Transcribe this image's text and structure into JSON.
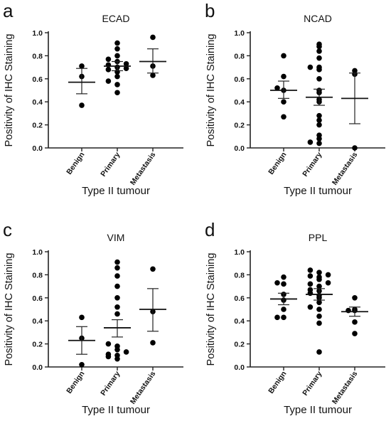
{
  "chart_data": [
    {
      "type": "scatter",
      "panel": "a",
      "title": "ECAD",
      "xlabel": "Type II tumour",
      "ylabel": "Positivity of IHC Staining",
      "ylim": [
        0,
        1.0
      ],
      "yticks": [
        "0.0",
        "0.2",
        "0.4",
        "0.6",
        "0.8",
        "1.0"
      ],
      "categories": [
        "Benign",
        "Primary",
        "Metastasis"
      ],
      "series": [
        {
          "values": [
            0.37,
            0.62,
            0.71
          ]
        },
        {
          "values": [
            0.48,
            0.55,
            0.58,
            0.62,
            0.66,
            0.68,
            0.69,
            0.7,
            0.72,
            0.73,
            0.75,
            0.77,
            0.8,
            0.86,
            0.91
          ]
        },
        {
          "values": [
            0.63,
            0.71,
            0.96
          ]
        }
      ],
      "means": [
        0.57,
        0.71,
        0.75
      ],
      "errors": [
        {
          "low": 0.47,
          "high": 0.69
        },
        {
          "low": 0.67,
          "high": 0.75
        },
        {
          "low": 0.65,
          "high": 0.86
        }
      ]
    },
    {
      "type": "scatter",
      "panel": "b",
      "title": "NCAD",
      "xlabel": "Type II tumour",
      "ylabel": "Positivity of IHC Staining",
      "ylim": [
        0,
        1.0
      ],
      "yticks": [
        "0.0",
        "0.2",
        "0.4",
        "0.6",
        "0.8",
        "1.0"
      ],
      "categories": [
        "Benign",
        "Primary",
        "Metastasis"
      ],
      "series": [
        {
          "values": [
            0.27,
            0.4,
            0.5,
            0.52,
            0.62,
            0.8
          ]
        },
        {
          "values": [
            0.04,
            0.05,
            0.08,
            0.11,
            0.2,
            0.24,
            0.28,
            0.4,
            0.42,
            0.48,
            0.5,
            0.6,
            0.68,
            0.7,
            0.7,
            0.78,
            0.84,
            0.88,
            0.9
          ]
        },
        {
          "values": [
            0.0,
            0.64,
            0.67
          ]
        }
      ],
      "means": [
        0.5,
        0.44,
        0.43
      ],
      "errors": [
        {
          "low": 0.43,
          "high": 0.58
        },
        {
          "low": 0.37,
          "high": 0.51
        },
        {
          "low": 0.21,
          "high": 0.65
        }
      ]
    },
    {
      "type": "scatter",
      "panel": "c",
      "title": "VIM",
      "xlabel": "Type II tumour",
      "ylabel": "Positivity of IHC Staining",
      "ylim": [
        0,
        1.0
      ],
      "yticks": [
        "0.0",
        "0.2",
        "0.4",
        "0.6",
        "0.8",
        "1.0"
      ],
      "categories": [
        "Benign",
        "Primary",
        "Metastasis"
      ],
      "series": [
        {
          "values": [
            0.02,
            0.25,
            0.43
          ]
        },
        {
          "values": [
            0.07,
            0.09,
            0.1,
            0.11,
            0.13,
            0.15,
            0.18,
            0.2,
            0.46,
            0.52,
            0.6,
            0.7,
            0.79,
            0.86,
            0.91
          ]
        },
        {
          "values": [
            0.21,
            0.48,
            0.85
          ]
        }
      ],
      "means": [
        0.23,
        0.34,
        0.5
      ],
      "errors": [
        {
          "low": 0.11,
          "high": 0.35
        },
        {
          "low": 0.26,
          "high": 0.41
        },
        {
          "low": 0.31,
          "high": 0.68
        }
      ]
    },
    {
      "type": "scatter",
      "panel": "d",
      "title": "PPL",
      "xlabel": "Type II tumour",
      "ylabel": "Positivity of IHC Staining",
      "ylim": [
        0,
        1.0
      ],
      "yticks": [
        "0.0",
        "0.2",
        "0.4",
        "0.6",
        "0.8",
        "1.0"
      ],
      "categories": [
        "Benign",
        "Primary",
        "Metastasis"
      ],
      "series": [
        {
          "values": [
            0.43,
            0.43,
            0.5,
            0.58,
            0.63,
            0.72,
            0.73,
            0.78
          ]
        },
        {
          "values": [
            0.13,
            0.38,
            0.44,
            0.5,
            0.52,
            0.56,
            0.6,
            0.62,
            0.64,
            0.66,
            0.67,
            0.7,
            0.72,
            0.73,
            0.76,
            0.78,
            0.79,
            0.8,
            0.82,
            0.84
          ]
        },
        {
          "values": [
            0.29,
            0.39,
            0.49,
            0.49,
            0.5,
            0.6
          ]
        }
      ],
      "means": [
        0.59,
        0.63,
        0.48
      ],
      "errors": [
        {
          "low": 0.54,
          "high": 0.64
        },
        {
          "low": 0.58,
          "high": 0.68
        },
        {
          "low": 0.44,
          "high": 0.52
        }
      ]
    }
  ]
}
